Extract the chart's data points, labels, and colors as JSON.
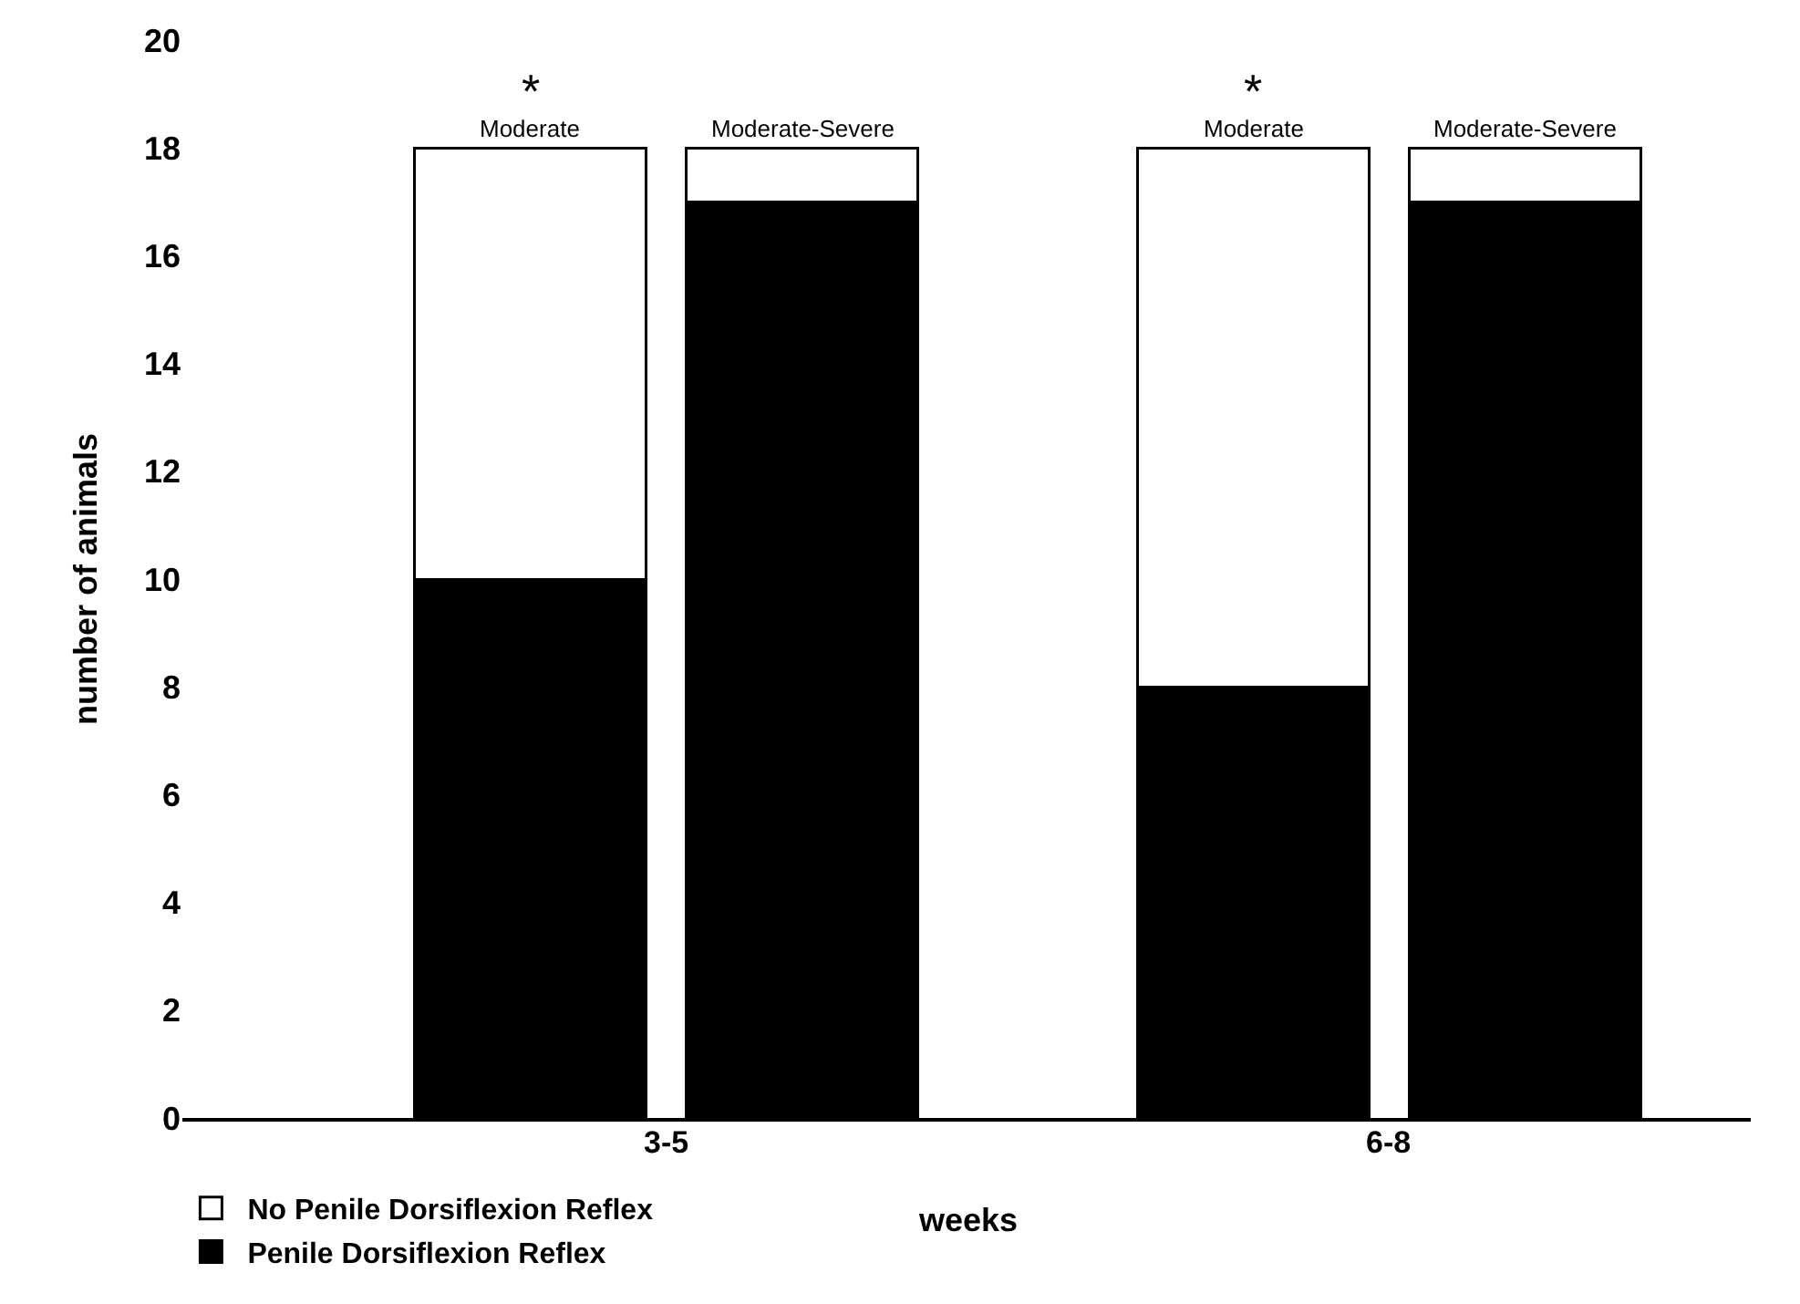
{
  "chart_data": {
    "type": "bar",
    "stacked": true,
    "xlabel": "weeks",
    "ylabel": "number of animals",
    "categories": [
      "Moderate",
      "Moderate-Severe",
      "Moderate",
      "Moderate-Severe"
    ],
    "series": [
      {
        "name": "Penile Dorsiflexion Reflex",
        "color": "#000000",
        "values": [
          10,
          17,
          8,
          17
        ]
      },
      {
        "name": "No Penile Dorsiflexion Reflex",
        "color": "#ffffff",
        "values": [
          8,
          1,
          10,
          1
        ]
      }
    ],
    "annotations": [
      "*",
      "*",
      "3-5",
      "6-8"
    ],
    "ylim": [
      0,
      20
    ],
    "yticks": [
      0,
      2,
      4,
      6,
      8,
      10,
      12,
      14,
      16,
      18,
      20
    ],
    "legend": "bottom left"
  }
}
